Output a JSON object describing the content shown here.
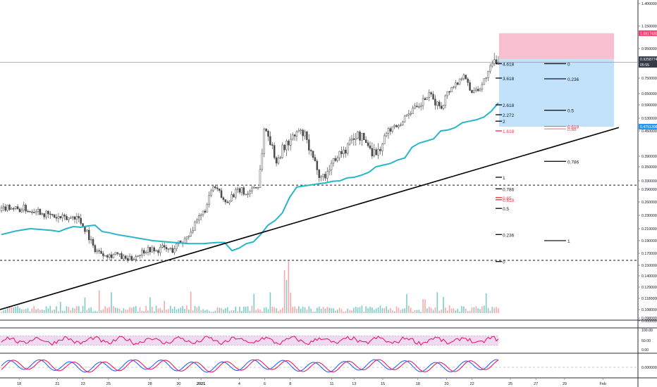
{
  "chart_data": {
    "type": "candlestick",
    "price_axis": {
      "scale": "log",
      "ticks": [
        "1.40000000",
        "1.15000000",
        "0.95000000",
        "0.91982347",
        "0.75000000",
        "0.65000000",
        "0.59000000",
        "0.53000000",
        "0.45000000",
        "0.39000000",
        "0.35000000",
        "0.33000000",
        "0.29000000",
        "0.26000000",
        "0.23000000",
        "0.21000000",
        "0.19000000",
        "0.17000000",
        "0.15000000",
        "0.14000000",
        "0.12900000",
        "0.11800000",
        "0.10800000",
        "0.09800000",
        "0.00000000"
      ],
      "tick_values": [
        1.4,
        1.15,
        0.95,
        0.9198,
        0.75,
        0.65,
        0.59,
        0.53,
        0.45,
        0.39,
        0.35,
        0.33,
        0.29,
        0.26,
        0.23,
        0.21,
        0.19,
        0.17,
        0.15,
        0.14,
        0.129,
        0.118,
        0.108,
        0.098,
        0.0
      ],
      "badges": [
        {
          "label": "1.08174305",
          "value": 1.0817,
          "color": "#f23e6f"
        },
        {
          "label": "0.92587744",
          "value": 0.9259,
          "color": "#363a45"
        },
        {
          "label": "05:55",
          "value": 0.8875,
          "color": "#363a45"
        },
        {
          "label": "0.47513087",
          "value": 0.4751,
          "color": "#2196f3"
        }
      ]
    },
    "x_axis": {
      "ticks": [
        "18",
        "21",
        "23",
        "25",
        "28",
        "30",
        "2021",
        "4",
        "6",
        "8",
        "11",
        "13",
        "15",
        "18",
        "20",
        "22",
        "25",
        "27",
        "29",
        "Feb"
      ],
      "tick_positions": [
        0.03,
        0.09,
        0.13,
        0.17,
        0.235,
        0.28,
        0.315,
        0.375,
        0.415,
        0.455,
        0.52,
        0.555,
        0.6,
        0.655,
        0.7,
        0.74,
        0.8,
        0.84,
        0.885,
        0.945
      ]
    },
    "price_series": [
      0.24,
      0.25,
      0.247,
      0.242,
      0.246,
      0.239,
      0.244,
      0.236,
      0.232,
      0.228,
      0.226,
      0.224,
      0.226,
      0.23,
      0.218,
      0.205,
      0.18,
      0.172,
      0.17,
      0.166,
      0.17,
      0.163,
      0.159,
      0.162,
      0.168,
      0.175,
      0.177,
      0.172,
      0.179,
      0.176,
      0.175,
      0.186,
      0.19,
      0.205,
      0.215,
      0.23,
      0.25,
      0.3,
      0.285,
      0.258,
      0.27,
      0.283,
      0.29,
      0.275,
      0.3,
      0.3,
      0.46,
      0.43,
      0.37,
      0.4,
      0.42,
      0.43,
      0.45,
      0.44,
      0.4,
      0.36,
      0.335,
      0.34,
      0.37,
      0.395,
      0.4,
      0.42,
      0.44,
      0.435,
      0.42,
      0.4,
      0.4,
      0.43,
      0.46,
      0.48,
      0.5,
      0.55,
      0.57,
      0.57,
      0.62,
      0.64,
      0.6,
      0.58,
      0.65,
      0.7,
      0.72,
      0.8,
      0.66,
      0.68,
      0.69,
      0.78,
      0.9,
      0.925
    ],
    "vwap_series": [
      0.2,
      0.203,
      0.206,
      0.208,
      0.21,
      0.209,
      0.208,
      0.207,
      0.205,
      0.21,
      0.213,
      0.212,
      0.214,
      0.215,
      0.205,
      0.203,
      0.2,
      0.198,
      0.196,
      0.194,
      0.192,
      0.19,
      0.189,
      0.188,
      0.187,
      0.186,
      0.185,
      0.185,
      0.185,
      0.186,
      0.187,
      0.187,
      0.174,
      0.178,
      0.185,
      0.188,
      0.2,
      0.215,
      0.222,
      0.235,
      0.27,
      0.3,
      0.305,
      0.31,
      0.315,
      0.32,
      0.328,
      0.33,
      0.334,
      0.335,
      0.338,
      0.342,
      0.35,
      0.356,
      0.362,
      0.375,
      0.383,
      0.41,
      0.42,
      0.425,
      0.43,
      0.45,
      0.455,
      0.47,
      0.5,
      0.51,
      0.52,
      0.535,
      0.56,
      0.6
    ],
    "trendline": {
      "from": [
        0.0,
        0.108
      ],
      "to": [
        0.97,
        0.47
      ]
    },
    "horizontal_levels": [
      {
        "value": 0.917,
        "style": "solid-gray"
      },
      {
        "value": 0.309,
        "style": "dashed"
      },
      {
        "value": 0.158,
        "style": "dashed"
      }
    ],
    "fib_extension_labels": [
      {
        "label": "4.618",
        "value": 0.9,
        "color": "#131722"
      },
      {
        "label": "3.618",
        "value": 0.75,
        "color": "#131722"
      },
      {
        "label": "2.618",
        "value": 0.59,
        "color": "#131722"
      },
      {
        "label": "2.272",
        "value": 0.545,
        "color": "#131722"
      },
      {
        "label": "2",
        "value": 0.51,
        "color": "#131722"
      },
      {
        "label": "1.618",
        "value": 0.45,
        "color": "#f23645"
      },
      {
        "label": "1",
        "value": 0.335,
        "color": "#131722"
      },
      {
        "label": "0.786",
        "value": 0.292,
        "color": "#131722"
      },
      {
        "label": "0.65",
        "value": 0.27,
        "color": "#f23645"
      },
      {
        "label": "0.618",
        "value": 0.265,
        "color": "#f23645"
      },
      {
        "label": "0.5",
        "value": 0.245,
        "color": "#131722"
      },
      {
        "label": "0.236",
        "value": 0.2,
        "color": "#131722"
      },
      {
        "label": "0",
        "value": 0.156,
        "color": "#131722"
      }
    ],
    "fib_retracement_labels": [
      {
        "label": "0",
        "value": 0.9,
        "color": "#131722"
      },
      {
        "label": "0.236",
        "value": 0.745,
        "color": "#131722"
      },
      {
        "label": "0.5",
        "value": 0.565,
        "color": "#131722"
      },
      {
        "label": "0.618",
        "value": 0.478,
        "color": "#f23645"
      },
      {
        "label": "0.65",
        "value": 0.462,
        "color": "#f23645"
      },
      {
        "label": "0.786",
        "value": 0.37,
        "color": "#131722"
      },
      {
        "label": "1",
        "value": 0.19,
        "color": "#131722"
      }
    ],
    "position_tool": {
      "stop": 1.08174305,
      "entry": 0.92587744,
      "target": 0.47513087
    },
    "rsi_panel": {
      "ticks": [
        "100.00",
        "50.00",
        "0.00"
      ]
    },
    "oscillator_panel": {
      "ticks": [
        "0.00000000"
      ]
    },
    "colors": {
      "vwap": "#26b5c9",
      "candle": "#4a4a4a",
      "trendline": "#000000",
      "volume_up": "#7fcdc4",
      "volume_down": "#f7a9a9",
      "stop_zone": "#f7b8cc",
      "profit_zone": "#bbdefb",
      "rsi_line": "#e91e63",
      "rsi_band": "#e8c9ee",
      "osc_a": "#2962ff",
      "osc_b": "#e91e63"
    }
  }
}
